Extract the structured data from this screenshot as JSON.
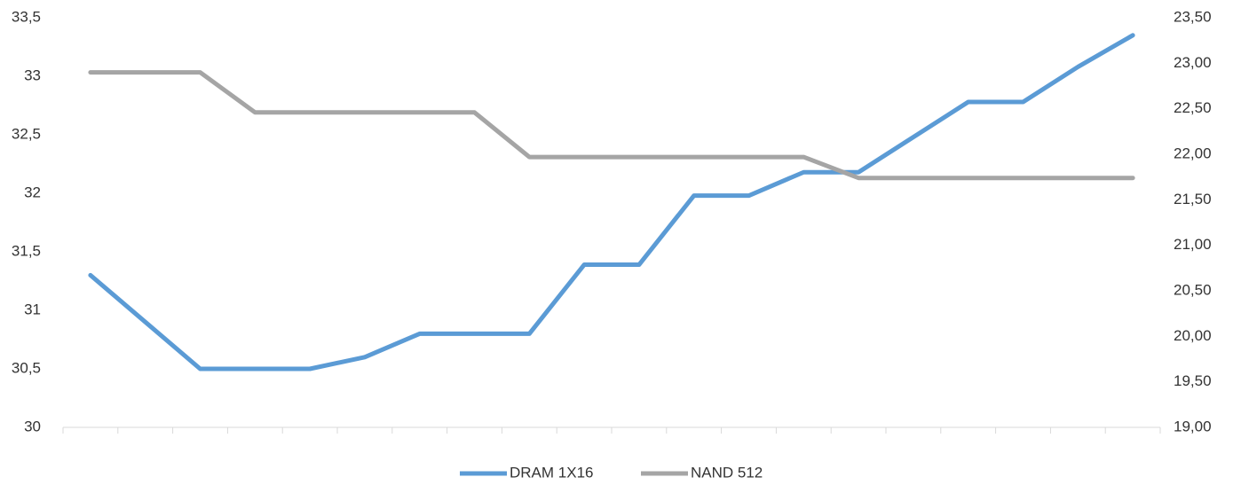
{
  "chart_data": {
    "type": "line",
    "categories": [
      null,
      null,
      null,
      null,
      null,
      null,
      null,
      null,
      null,
      null,
      null,
      null,
      null,
      null,
      null,
      null,
      null,
      null,
      null,
      null
    ],
    "series": [
      {
        "name": "DRAM 1X16",
        "color": "#5b9bd5",
        "values": [
          31.3,
          30.9,
          30.5,
          30.5,
          30.5,
          30.6,
          30.8,
          30.8,
          30.8,
          31.39,
          31.39,
          31.98,
          31.98,
          32.18,
          32.18,
          32.48,
          32.78,
          32.78,
          33.08,
          33.35
        ]
      },
      {
        "name": "NAND 512",
        "color": "#a5a5a5",
        "axis": "y2",
        "values": [
          22.9,
          22.9,
          22.9,
          22.46,
          22.46,
          22.46,
          22.46,
          22.46,
          21.97,
          21.97,
          21.97,
          21.97,
          21.97,
          21.97,
          21.74,
          21.74,
          21.74,
          21.74,
          21.74,
          21.74
        ]
      }
    ],
    "ylim": [
      30,
      33.5
    ],
    "yticks": [
      30,
      {
        "value": 30.5,
        "label": "30,5"
      },
      31,
      {
        "value": 31.5,
        "label": "31,5"
      },
      32,
      {
        "value": 32.5,
        "label": "32,5"
      },
      33,
      {
        "value": 33.5,
        "label": "33,5"
      }
    ],
    "y2lim": [
      19,
      23.5
    ],
    "y2ticks": [
      {
        "value": 19,
        "label": "19,00"
      },
      {
        "value": 19.5,
        "label": "19,50"
      },
      {
        "value": 20,
        "label": "20,00"
      },
      {
        "value": 20.5,
        "label": "20,50"
      },
      {
        "value": 21,
        "label": "21,00"
      },
      {
        "value": 21.5,
        "label": "21,50"
      },
      {
        "value": 22,
        "label": "22,00"
      },
      {
        "value": 22.5,
        "label": "22,50"
      },
      {
        "value": 23,
        "label": "23,00"
      },
      {
        "value": 23.5,
        "label": "23,50"
      }
    ],
    "legend": "bottom"
  }
}
